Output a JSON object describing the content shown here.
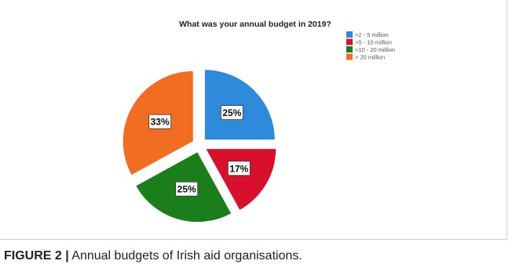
{
  "caption": {
    "label": "FIGURE 2 |",
    "text": " Annual budgets of Irish aid organisations."
  },
  "chart_data": {
    "type": "pie",
    "title": "What was your annual budget in 2019?",
    "legend_position": "top-right",
    "exploded": true,
    "start": "12 o'clock, clockwise",
    "slices": [
      {
        "label": ">2 - 5 million",
        "value": 25,
        "display": "25%",
        "color": "#2e8bdc"
      },
      {
        "label": ">5 - 10 million",
        "value": 17,
        "display": "17%",
        "color": "#d8102c"
      },
      {
        "label": ">10 - 20 million",
        "value": 25,
        "display": "25%",
        "color": "#1a7f1a"
      },
      {
        "label": "> 20 million",
        "value": 33,
        "display": "33%",
        "color": "#f06d21"
      }
    ]
  }
}
